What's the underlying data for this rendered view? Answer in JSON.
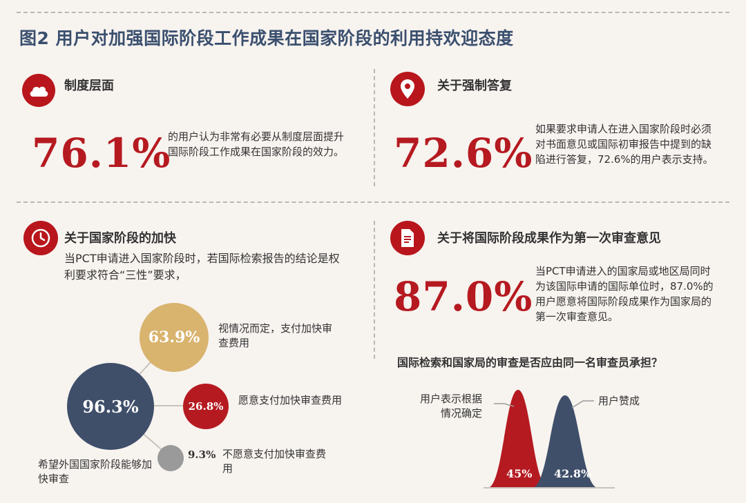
{
  "title": "图2 用户对加强国际阶段工作成果在国家阶段的利用持欢迎态度",
  "colors": {
    "accent_red": "#b51a20",
    "navy": "#3f4f6a",
    "gold": "#d9b46f",
    "gray": "#9a9a9a",
    "background": "#f7f3ef"
  },
  "sections": {
    "institutional": {
      "icon": "cloud-icon",
      "heading": "制度层面",
      "percent": "76.1%",
      "description": "的用户认为非常有必要从制度层面提升国际阶段工作成果在国家阶段的效力。"
    },
    "mandatory_reply": {
      "icon": "location-pin-icon",
      "heading": "关于强制答复",
      "percent": "72.6%",
      "description": "如果要求申请人在进入国家阶段时必须对书面意见或国际初审报告中提到的缺陷进行答复，72.6%的用户表示支持。"
    },
    "acceleration": {
      "icon": "clock-icon",
      "heading": "关于国家阶段的加快",
      "intro": "当PCT申请进入国家阶段时，若国际检索报告的结论是权利要求符合“三性”要求，"
    },
    "first_opinion": {
      "icon": "document-icon",
      "heading": "关于将国际阶段成果作为第一次审查意见",
      "percent": "87.0%",
      "description": "当PCT申请进入的国家局或地区局同时为该国际申请的国际单位时，87.0%的用户愿意将国际阶段成果作为国家局的第一次审查意见。"
    },
    "same_examiner": {
      "question": "国际检索和国家局的审查是否应由同一名审查员承担？"
    }
  },
  "chart_data": [
    {
      "type": "bubble",
      "title": "关于国家阶段的加快",
      "main": {
        "value": 96.3,
        "label": "96.3%",
        "text": "希望外国国家阶段能够加快审查"
      },
      "items": [
        {
          "value": 63.9,
          "label": "63.9%",
          "text": "视情况而定，支付加快审查费用"
        },
        {
          "value": 26.8,
          "label": "26.8%",
          "text": "愿意支付加快审查费用"
        },
        {
          "value": 9.3,
          "label": "9.3%",
          "text": "不愿意支付加快审查费用"
        }
      ]
    },
    {
      "type": "area",
      "title": "国际检索和国家局的审查是否应由同一名审查员承担？",
      "series": [
        {
          "name": "用户表示根据情况确定",
          "value": 45,
          "label": "45%"
        },
        {
          "name": "用户赞成",
          "value": 42.8,
          "label": "42.8%"
        }
      ]
    }
  ]
}
